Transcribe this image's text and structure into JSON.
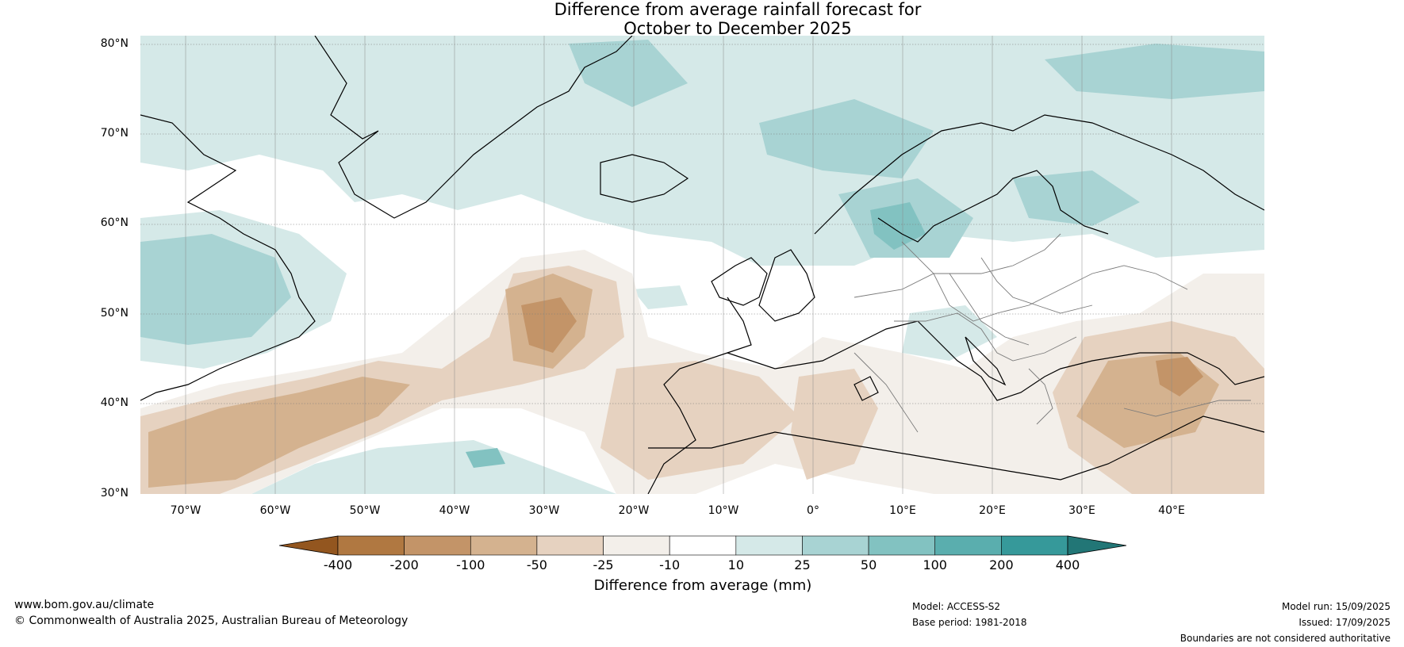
{
  "title_line1": "Difference from average rainfall forecast for",
  "title_line2": "October to December 2025",
  "lat_labels": [
    "80°N",
    "70°N",
    "60°N",
    "50°N",
    "40°N",
    "30°N"
  ],
  "lon_labels": [
    "70°W",
    "60°W",
    "50°W",
    "40°W",
    "30°W",
    "20°W",
    "10°W",
    "0°",
    "10°E",
    "20°E",
    "30°E",
    "40°E"
  ],
  "colorbar": {
    "ticks": [
      "-400",
      "-200",
      "-100",
      "-50",
      "-25",
      "-10",
      "10",
      "25",
      "50",
      "100",
      "200",
      "400"
    ],
    "colors": [
      "#93561f",
      "#b07841",
      "#c39468",
      "#d4b28f",
      "#e6d2c0",
      "#f3efea",
      "#ffffff",
      "#d5e9e8",
      "#a8d3d3",
      "#82c2c1",
      "#5aaeae",
      "#36999a",
      "#227676"
    ],
    "label": "Difference from average (mm)"
  },
  "footer": {
    "website": "www.bom.gov.au/climate",
    "copyright": "© Commonwealth of Australia 2025, Australian Bureau of Meteorology",
    "model": "Model: ACCESS-S2",
    "base_period": "Base period: 1981-2018",
    "model_run": "Model run: 15/09/2025",
    "issued": "Issued: 17/09/2025",
    "disclaimer": "Boundaries are not considered authoritative"
  }
}
